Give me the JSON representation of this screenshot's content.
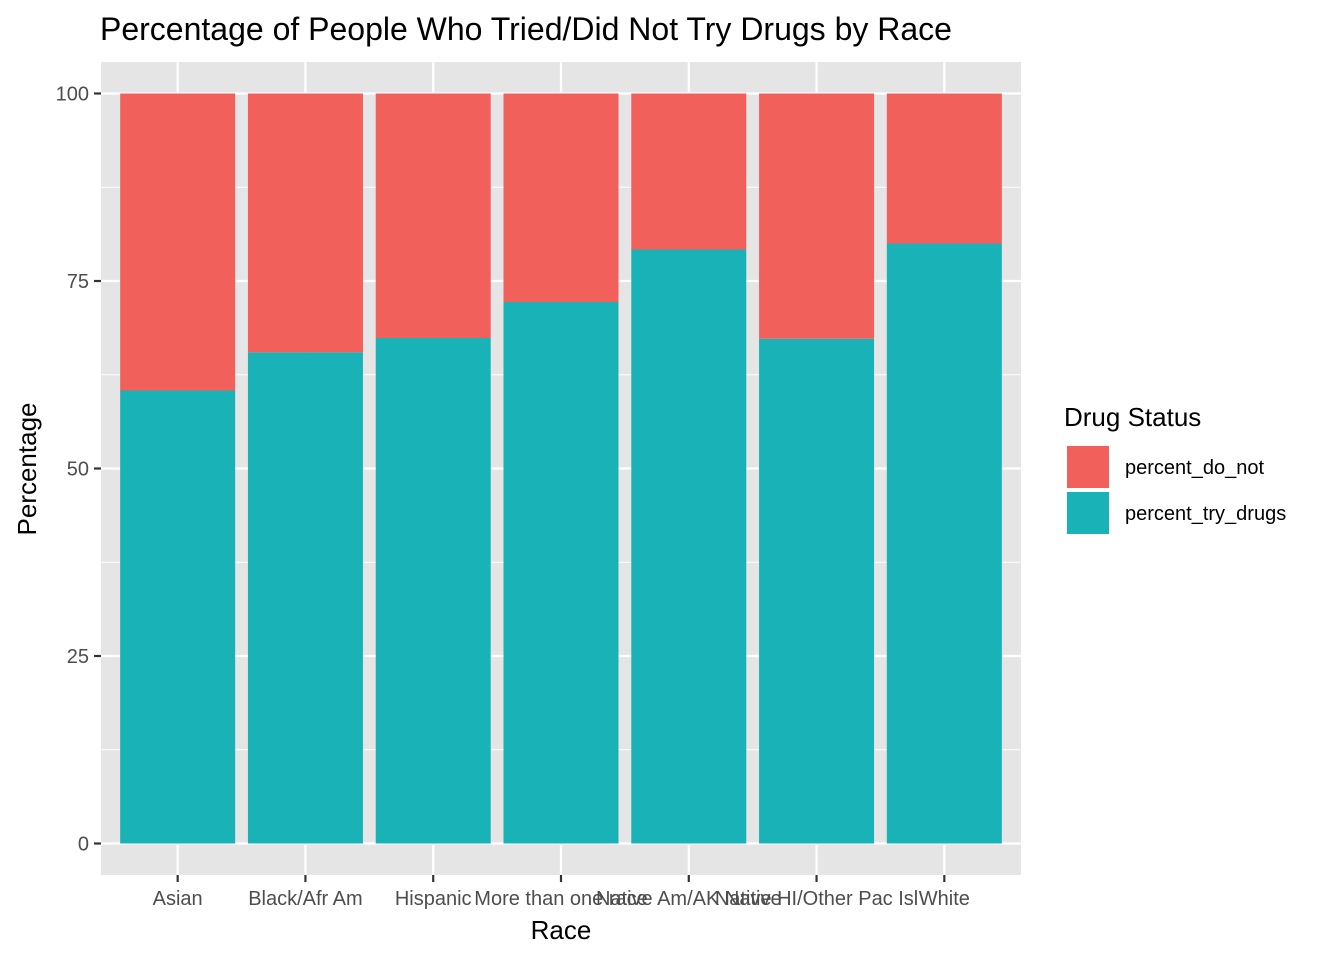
{
  "chart_data": {
    "type": "bar",
    "stacked": true,
    "title": "Percentage of People Who Tried/Did Not Try Drugs by Race",
    "xlabel": "Race",
    "ylabel": "Percentage",
    "categories": [
      "Asian",
      "Black/Afr Am",
      "Hispanic",
      "More than one race",
      "Native Am/AK Native",
      "Native HI/Other Pac Isl",
      "White"
    ],
    "ylim": [
      -4.2,
      104.2
    ],
    "yticks": [
      0,
      25,
      50,
      75,
      100
    ],
    "ytick_labels": [
      "0",
      "25",
      "50",
      "75",
      "100"
    ],
    "grid": true,
    "legend": {
      "title": "Drug Status",
      "position": "right"
    },
    "series": [
      {
        "name": "percent_try_drugs",
        "color": "#19B2B7",
        "values": [
          60.4,
          65.5,
          67.4,
          72.2,
          79.2,
          67.3,
          80.0
        ]
      },
      {
        "name": "percent_do_not",
        "color": "#F2605C",
        "values": [
          39.6,
          34.5,
          32.6,
          27.8,
          20.8,
          32.7,
          20.0
        ]
      }
    ],
    "legend_order": [
      "percent_do_not",
      "percent_try_drugs"
    ],
    "panel_background": "#E5E5E5",
    "grid_color": "#FFFFFF"
  }
}
